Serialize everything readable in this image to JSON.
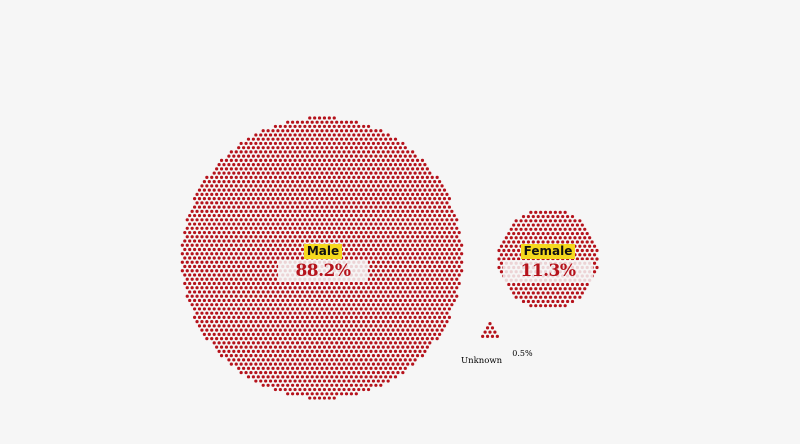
{
  "chart_data": {
    "type": "proportional-area dot chart",
    "dot_color": "#b5121b",
    "label_highlight_color": "#f5d91d",
    "background": "#f6f6f6",
    "series": [
      {
        "label": "Male",
        "value": 88.2,
        "value_label": "88.2%"
      },
      {
        "label": "Female",
        "value": 11.3,
        "value_label": "11.3%"
      },
      {
        "label": "Unknown",
        "value": 0.5,
        "value_label": "0.5%"
      }
    ]
  }
}
